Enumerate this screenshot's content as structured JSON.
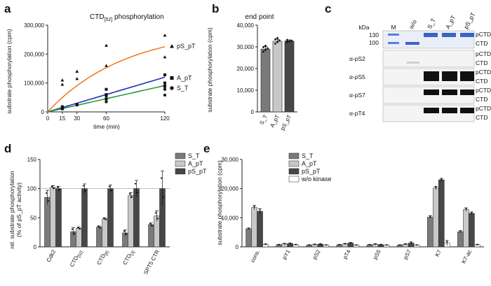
{
  "chart_data": [
    {
      "id": "a",
      "panel_label": "a",
      "type": "scatter",
      "title_main": "CTD",
      "title_sub": "[52]",
      "title_rest": " phosphorylation",
      "xlabel": "time (min)",
      "ylabel": "substrate phosphorylation (cpm)",
      "xticks": [
        "0",
        "15",
        "30",
        "60",
        "120"
      ],
      "xtick_values": [
        0,
        15,
        30,
        60,
        120
      ],
      "yticks": [
        "0",
        "100,000",
        "200,000",
        "300,000"
      ],
      "ytick_values": [
        0,
        100000,
        200000,
        300000
      ],
      "xlim": [
        0,
        120
      ],
      "ylim": [
        0,
        300000
      ],
      "series": [
        {
          "name": "pS_pT",
          "color": "#f07e26",
          "marker": "triangle",
          "points": [
            [
              15,
              110000
            ],
            [
              15,
              95000
            ],
            [
              30,
              140000
            ],
            [
              30,
              115000
            ],
            [
              60,
              230000
            ],
            [
              60,
              160000
            ],
            [
              120,
              265000
            ],
            [
              120,
              190000
            ]
          ],
          "fit_vmax": 290000,
          "fit_k": 0.0125
        },
        {
          "name": "A_pT",
          "color": "#1f2fbf",
          "marker": "square",
          "points": [
            [
              15,
              18000
            ],
            [
              15,
              12000
            ],
            [
              30,
              26000
            ],
            [
              60,
              78000
            ],
            [
              60,
              60000
            ],
            [
              60,
              45000
            ],
            [
              120,
              128000
            ],
            [
              120,
              100000
            ],
            [
              120,
              88000
            ]
          ],
          "fit_slope": 1000
        },
        {
          "name": "S_T",
          "color": "#2a9a3a",
          "marker": "circle",
          "points": [
            [
              15,
              14000
            ],
            [
              15,
              10000
            ],
            [
              30,
              24000
            ],
            [
              60,
              55000
            ],
            [
              60,
              35000
            ],
            [
              120,
              90000
            ],
            [
              120,
              78000
            ],
            [
              120,
              58000
            ]
          ],
          "fit_slope": 760
        }
      ]
    },
    {
      "id": "b",
      "panel_label": "b",
      "type": "bar",
      "title": "end point",
      "ylabel": "substrate phosphorylation (cpm)",
      "categories": [
        "S_T",
        "A_pT",
        "pS_pT"
      ],
      "values": [
        29000,
        32600,
        32700
      ],
      "errors": [
        1100,
        900,
        500
      ],
      "points": [
        [
          27800,
          28600,
          29300,
          29900,
          30500
        ],
        [
          31500,
          32200,
          32900,
          33500,
          34100
        ],
        [
          32200,
          32500,
          32900,
          33200
        ]
      ],
      "colors": [
        "#7a7a7a",
        "#c8c8c8",
        "#474747"
      ],
      "yticks": [
        "0",
        "10,000",
        "20,000",
        "30,000",
        "40,000"
      ],
      "ytick_values": [
        0,
        10000,
        20000,
        30000,
        40000
      ],
      "ylim": [
        0,
        40000
      ]
    },
    {
      "id": "d",
      "panel_label": "d",
      "type": "bar",
      "ylabel_line1": "rel. substrate phosphorylation",
      "ylabel_line2": "(% of pS_pT activity)",
      "categories": [
        "Cdk2",
        "CTD[52]",
        "CTD[6]",
        "CTD[3]",
        "SPT5 CTR"
      ],
      "category_main": [
        "Cdk2",
        "CTD",
        "CTD",
        "CTD",
        "SPT5 CTR"
      ],
      "category_sub": [
        "",
        "[52]",
        "[6]",
        "[3]",
        ""
      ],
      "series": [
        {
          "name": "S_T",
          "color": "#7a7a7a",
          "values": [
            85,
            26,
            34,
            24,
            38
          ],
          "errors": [
            12,
            7,
            2,
            5,
            3
          ]
        },
        {
          "name": "A_pT",
          "color": "#c8c8c8",
          "values": [
            102,
            32,
            48,
            88,
            53
          ],
          "errors": [
            3,
            2,
            2,
            5,
            9
          ]
        },
        {
          "name": "pS_pT",
          "color": "#474747",
          "values": [
            100,
            100,
            100,
            100,
            100
          ],
          "errors": [
            4,
            8,
            6,
            14,
            30
          ]
        }
      ],
      "yticks": [
        "0",
        "50",
        "100",
        "150"
      ],
      "ytick_values": [
        0,
        50,
        100,
        150
      ],
      "ylim": [
        0,
        150
      ],
      "reference_line": 100
    },
    {
      "id": "e",
      "panel_label": "e",
      "type": "bar",
      "ylabel": "substrate phosphorylation (cpm)",
      "categories": [
        "cons.",
        "pY1",
        "pS2",
        "pT4",
        "pS5",
        "pS7",
        "K7",
        "K7-ac"
      ],
      "series": [
        {
          "name": "S_T",
          "color": "#7a7a7a",
          "values": [
            6200,
            700,
            600,
            700,
            700,
            600,
            10200,
            5200
          ],
          "errors": [
            300,
            150,
            100,
            100,
            100,
            100,
            500,
            400
          ]
        },
        {
          "name": "A_pT",
          "color": "#c8c8c8",
          "values": [
            13500,
            1000,
            800,
            1000,
            900,
            900,
            20200,
            12800
          ],
          "errors": [
            700,
            200,
            150,
            150,
            150,
            200,
            600,
            600
          ]
        },
        {
          "name": "pS_pT",
          "color": "#474747",
          "values": [
            12200,
            1100,
            900,
            1300,
            700,
            1300,
            23000,
            11500
          ],
          "errors": [
            900,
            200,
            150,
            200,
            150,
            400,
            500,
            500
          ]
        },
        {
          "name": "w/o kinase",
          "color": "#ffffff",
          "values": [
            800,
            700,
            600,
            600,
            600,
            600,
            1300,
            700
          ],
          "errors": [
            200,
            150,
            100,
            100,
            100,
            100,
            900,
            150
          ]
        }
      ],
      "yticks": [
        "0",
        "10,000",
        "20,000",
        "30,000"
      ],
      "ytick_values": [
        0,
        10000,
        20000,
        30000
      ],
      "ylim": [
        0,
        30000
      ]
    }
  ],
  "blot": {
    "panel_label": "c",
    "kda_label": "kDa",
    "lane_labels": [
      "M",
      "w/o",
      "S_T",
      "A_pT",
      "pS_pT"
    ],
    "markers": [
      "130",
      "100"
    ],
    "right_labels": [
      "pCTD",
      "CTD"
    ],
    "strips": [
      "α-pS2",
      "α-pS5",
      "α-pS7",
      "α-pT4"
    ]
  },
  "colors": {
    "S_T": "#7a7a7a",
    "A_pT": "#c8c8c8",
    "pS_pT": "#474747",
    "coomassie": "#3a63c6"
  }
}
